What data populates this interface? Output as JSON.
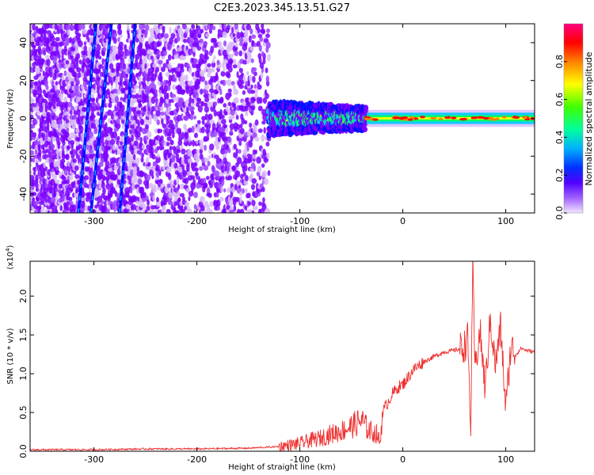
{
  "figure_title": "C2E3.2023.345.13.51.G27",
  "chart_data": [
    {
      "type": "heatmap",
      "title": "C2E3.2023.345.13.51.G27",
      "xlabel": "Height of straight line (km)",
      "ylabel": "Frequency (Hz)",
      "xlim": [
        -362,
        128
      ],
      "ylim": [
        -50,
        50
      ],
      "xticks": [
        -300,
        -200,
        -100,
        0,
        100
      ],
      "yticks": [
        -40,
        -20,
        0,
        20,
        40
      ],
      "grid": false,
      "colorbar": {
        "label": "Normalized spectral amplitude",
        "range": [
          0.0,
          1.0
        ],
        "ticks": [
          0.0,
          0.2,
          0.4,
          0.6,
          0.8
        ],
        "colors": [
          "#d7b8f5",
          "#7a00ff",
          "#0010ff",
          "#00c8ff",
          "#00ff60",
          "#ffff00",
          "#ff8000",
          "#ff0000",
          "#ff0090"
        ]
      },
      "features": {
        "noise_region_x": [
          -362,
          -130
        ],
        "noise_band_ymin": -50,
        "noise_band_ymax": 50,
        "transition_x": [
          -130,
          -35
        ],
        "transition_band_halfwidth_hz": 6,
        "signal_center_hz": 0,
        "signal_x": [
          -35,
          128
        ],
        "signal_band_halfwidth_hz": 3,
        "streaks": [
          {
            "x_at_ymin": -315,
            "x_at_ymax": -298
          },
          {
            "x_at_ymin": -303,
            "x_at_ymax": -283
          },
          {
            "x_at_ymin": -275,
            "x_at_ymax": -260
          }
        ]
      }
    },
    {
      "type": "line",
      "xlabel": "Height of straight line (km)",
      "ylabel": "SNR (10 * v/v)",
      "y_multiplier": "(x10",
      "y_multiplier_exp": "4",
      "y_multiplier_close": ")",
      "xlim": [
        -362,
        128
      ],
      "ylim": [
        0,
        2.45
      ],
      "xticks": [
        -300,
        -200,
        -100,
        0,
        100
      ],
      "yticks": [
        0.0,
        0.5,
        1.0,
        1.5,
        2.0
      ],
      "ytick_labels": [
        "0.0",
        "0.5",
        "1.0",
        "1.5",
        "2.0"
      ],
      "color": "#ee3030",
      "series": [
        {
          "x": [
            -362,
            -300,
            -250,
            -200,
            -150,
            -120,
            -100,
            -90,
            -80,
            -70,
            -60,
            -50,
            -45,
            -40,
            -35,
            -30,
            -25,
            -22,
            -20,
            -15,
            -10,
            -5,
            0,
            5,
            10,
            20,
            30,
            40,
            50,
            55,
            60,
            63,
            66,
            68,
            70,
            75,
            80,
            85,
            90,
            95,
            100,
            105,
            110,
            115,
            120,
            128
          ],
          "y": [
            0.02,
            0.02,
            0.03,
            0.03,
            0.04,
            0.06,
            0.1,
            0.14,
            0.17,
            0.22,
            0.26,
            0.32,
            0.36,
            0.4,
            0.3,
            0.25,
            0.22,
            0.1,
            0.5,
            0.62,
            0.74,
            0.82,
            0.86,
            0.95,
            1.05,
            1.15,
            1.22,
            1.28,
            1.3,
            1.32,
            1.36,
            1.45,
            0.3,
            2.4,
            1.05,
            1.55,
            0.8,
            1.7,
            1.1,
            1.6,
            0.55,
            1.35,
            1.25,
            1.33,
            1.3,
            1.28
          ]
        }
      ]
    }
  ]
}
